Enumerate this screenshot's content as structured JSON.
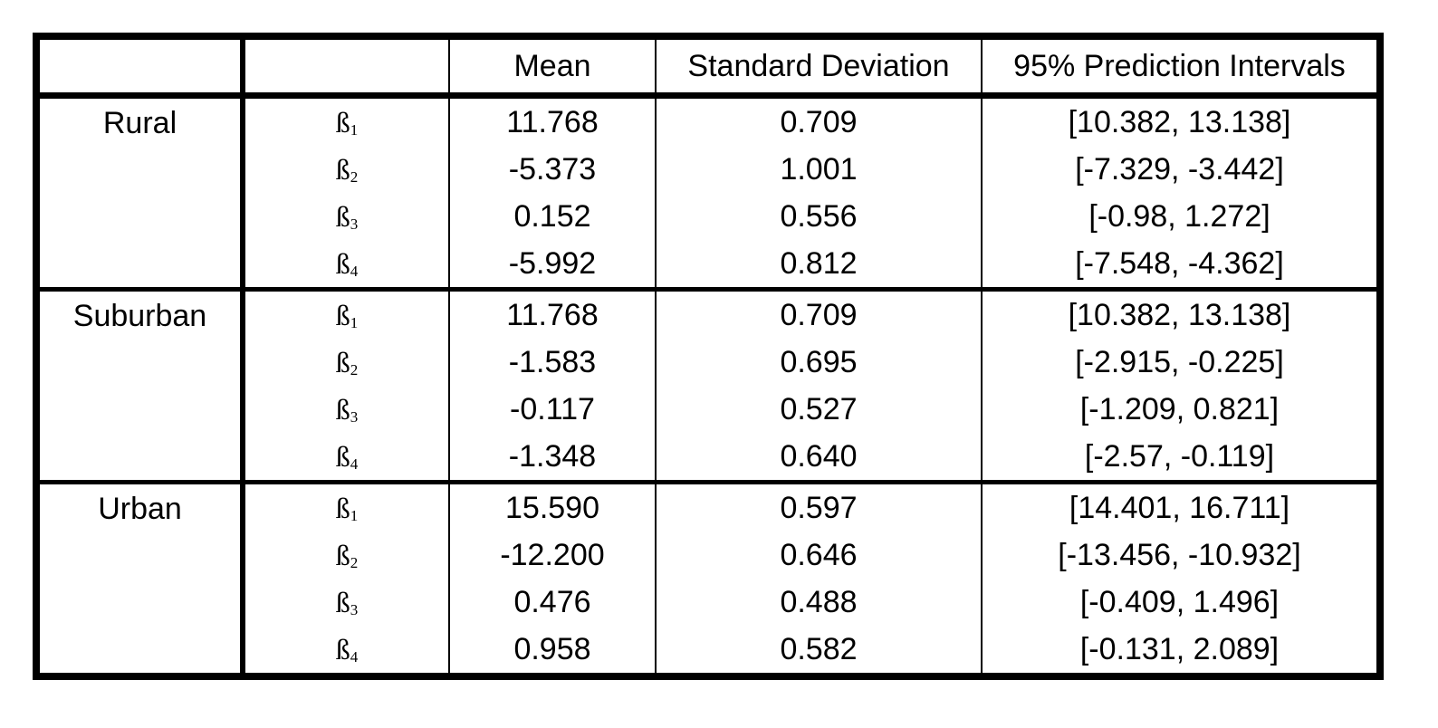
{
  "table": {
    "headers": [
      "",
      "",
      "Mean",
      "Standard Deviation",
      "95% Prediction Intervals"
    ],
    "groups": [
      {
        "region": "Rural",
        "rows": [
          {
            "coef": "ß",
            "sub": "1",
            "mean": "11.768",
            "sd": "0.709",
            "pi": "[10.382, 13.138]"
          },
          {
            "coef": "ß",
            "sub": "2",
            "mean": "-5.373",
            "sd": "1.001",
            "pi": "[-7.329, -3.442]"
          },
          {
            "coef": "ß",
            "sub": "3",
            "mean": "0.152",
            "sd": "0.556",
            "pi": "[-0.98, 1.272]"
          },
          {
            "coef": "ß",
            "sub": "4",
            "mean": "-5.992",
            "sd": "0.812",
            "pi": "[-7.548, -4.362]"
          }
        ]
      },
      {
        "region": "Suburban",
        "rows": [
          {
            "coef": "ß",
            "sub": "1",
            "mean": "11.768",
            "sd": "0.709",
            "pi": "[10.382, 13.138]"
          },
          {
            "coef": "ß",
            "sub": "2",
            "mean": "-1.583",
            "sd": "0.695",
            "pi": "[-2.915, -0.225]"
          },
          {
            "coef": "ß",
            "sub": "3",
            "mean": "-0.117",
            "sd": "0.527",
            "pi": "[-1.209, 0.821]"
          },
          {
            "coef": "ß",
            "sub": "4",
            "mean": "-1.348",
            "sd": "0.640",
            "pi": "[-2.57, -0.119]"
          }
        ]
      },
      {
        "region": "Urban",
        "rows": [
          {
            "coef": "ß",
            "sub": "1",
            "mean": "15.590",
            "sd": "0.597",
            "pi": "[14.401, 16.711]"
          },
          {
            "coef": "ß",
            "sub": "2",
            "mean": "-12.200",
            "sd": "0.646",
            "pi": "[-13.456, -10.932]"
          },
          {
            "coef": "ß",
            "sub": "3",
            "mean": "0.476",
            "sd": "0.488",
            "pi": "[-0.409, 1.496]"
          },
          {
            "coef": "ß",
            "sub": "4",
            "mean": "0.958",
            "sd": "0.582",
            "pi": "[-0.131, 2.089]"
          }
        ]
      }
    ]
  }
}
